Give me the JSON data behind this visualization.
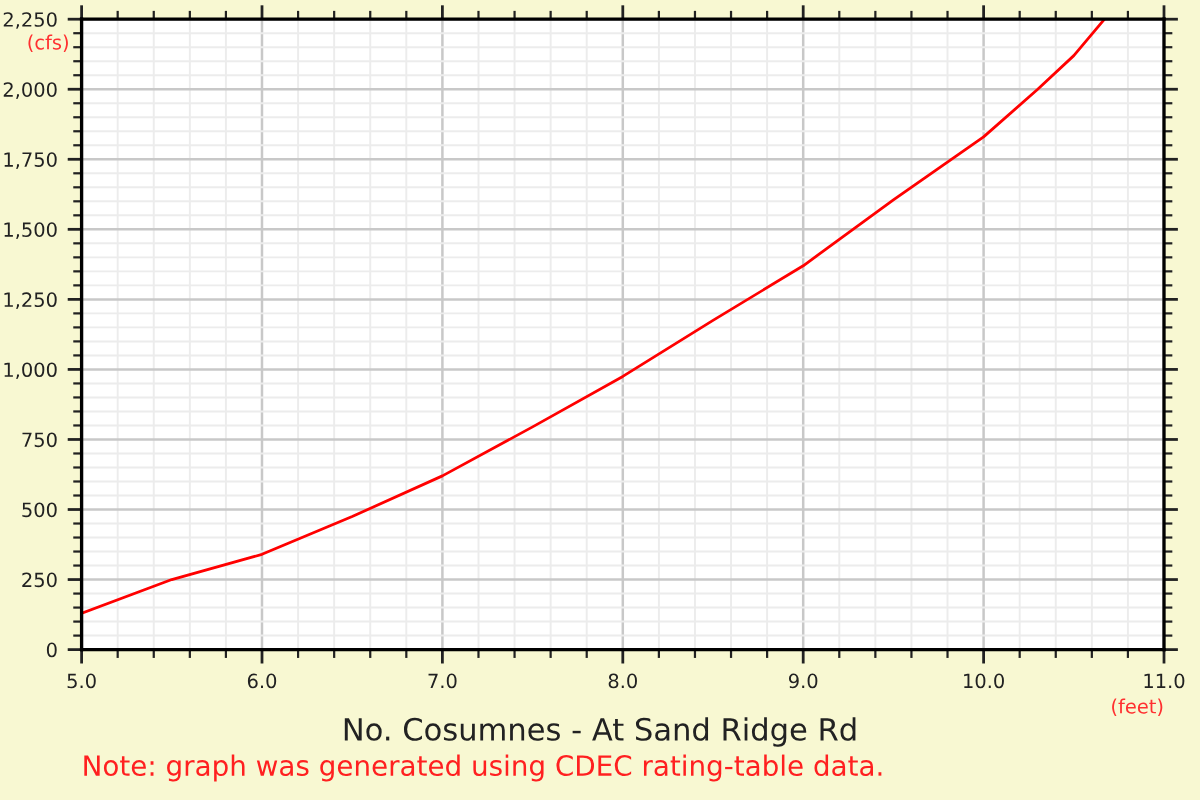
{
  "chart_data": {
    "type": "line",
    "title": "No. Cosumnes - At Sand Ridge Rd",
    "xlabel": "(feet)",
    "ylabel": "(cfs)",
    "annotations": [
      "Note: graph was generated using CDEC rating-table data."
    ],
    "x": [
      5.0,
      5.5,
      6.0,
      6.5,
      7.0,
      7.5,
      8.0,
      8.5,
      9.0,
      9.5,
      10.0,
      10.3,
      10.5,
      10.67
    ],
    "series": [
      {
        "color": "#ff0000",
        "values": [
          130,
          250,
          340,
          475,
          620,
          795,
          975,
          1175,
          1370,
          1605,
          1830,
          2000,
          2120,
          2250
        ]
      }
    ],
    "xlim": [
      5.0,
      11.0
    ],
    "ylim": [
      0,
      2250
    ],
    "xticks": [
      {
        "value": 5,
        "label": "5.0"
      },
      {
        "value": 6,
        "label": "6.0"
      },
      {
        "value": 7,
        "label": "7.0"
      },
      {
        "value": 8,
        "label": "8.0"
      },
      {
        "value": 9,
        "label": "9.0"
      },
      {
        "value": 10,
        "label": "10.0"
      },
      {
        "value": 11,
        "label": "11.0"
      }
    ],
    "yticks": [
      0,
      250,
      500,
      750,
      {
        "value": 1000,
        "label": "1,000"
      },
      {
        "value": 1250,
        "label": "1,250"
      },
      {
        "value": 1500,
        "label": "1,500"
      },
      {
        "value": 1750,
        "label": "1,750"
      },
      {
        "value": 2000,
        "label": "2,000"
      },
      {
        "value": 2250,
        "label": "2,250"
      }
    ],
    "grid": true,
    "marker": "none",
    "line_style": "solid"
  }
}
